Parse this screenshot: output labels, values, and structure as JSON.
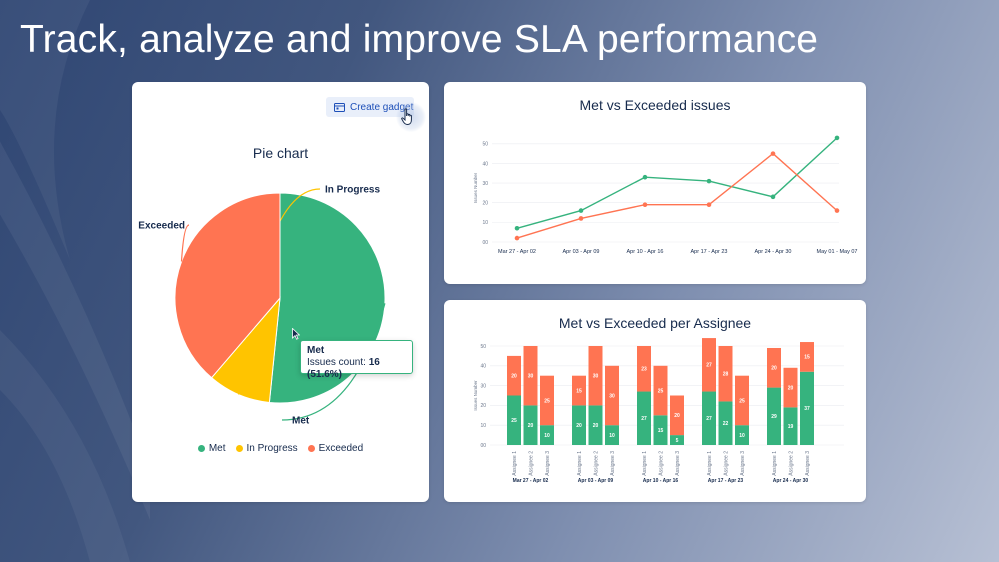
{
  "headline": "Track, analyze and improve SLA performance",
  "colors": {
    "met": "#36b37e",
    "in_progress": "#ffc400",
    "exceeded": "#ff7452",
    "accent": "#1d4fb8"
  },
  "pie_card": {
    "create_gadget_label": "Create gadget",
    "title": "Pie chart",
    "tooltip": {
      "title": "Met",
      "label": "Issues count:",
      "value": "16 (51.6%)"
    }
  },
  "icons": {
    "gadget": "chart-gadget-icon",
    "hand": "hand-pointer-icon",
    "arrow": "arrow-cursor-icon"
  },
  "chart_data": [
    {
      "type": "pie",
      "title": "Pie chart",
      "labels": [
        "Met",
        "In Progress",
        "Exceeded"
      ],
      "values": [
        16,
        3,
        12
      ],
      "legend": "bottom"
    },
    {
      "type": "line",
      "title": "Met vs Exceeded issues",
      "categories": [
        "Mar 27 - Apr 02",
        "Apr 03 - Apr 09",
        "Apr 10 - Apr 16",
        "Apr 17 - Apr 23",
        "Apr 24 - Apr 30",
        "May 01 - May 07"
      ],
      "ylabel": "Issues Number",
      "yticks": [
        "00",
        "10",
        "20",
        "30",
        "40",
        "50"
      ],
      "ylim": [
        0,
        55
      ],
      "grid": true,
      "series": [
        {
          "key": "met",
          "values": [
            7,
            16,
            33,
            31,
            23,
            53
          ]
        },
        {
          "key": "exceeded",
          "values": [
            2,
            12,
            19,
            19,
            45,
            16
          ]
        }
      ]
    },
    {
      "type": "bar",
      "stacked": true,
      "title": "Met vs Exceeded per Assignee",
      "ylabel": "Issues Number",
      "yticks": [
        "00",
        "10",
        "20",
        "30",
        "40",
        "50"
      ],
      "ylim": [
        0,
        50
      ],
      "grid": true,
      "groups": [
        {
          "label": "Mar 27 - Apr 02",
          "bars": [
            {
              "name": "Assignee 1",
              "met": 25,
              "exceeded": 20
            },
            {
              "name": "Assignee 2",
              "met": 20,
              "exceeded": 30
            },
            {
              "name": "Assignee 3",
              "met": 10,
              "exceeded": 25
            }
          ]
        },
        {
          "label": "Apr 03 - Apr 09",
          "bars": [
            {
              "name": "Assignee 1",
              "met": 20,
              "exceeded": 15
            },
            {
              "name": "Assignee 2",
              "met": 20,
              "exceeded": 30
            },
            {
              "name": "Assignee 3",
              "met": 10,
              "exceeded": 30
            }
          ]
        },
        {
          "label": "Apr 10 - Apr 16",
          "bars": [
            {
              "name": "Assignee 1",
              "met": 27,
              "exceeded": 23
            },
            {
              "name": "Assignee 2",
              "met": 15,
              "exceeded": 25
            },
            {
              "name": "Assignee 3",
              "met": 5,
              "exceeded": 20
            }
          ]
        },
        {
          "label": "Apr 17 - Apr 23",
          "bars": [
            {
              "name": "Assignee 1",
              "met": 27,
              "exceeded": 27
            },
            {
              "name": "Assignee 2",
              "met": 22,
              "exceeded": 28
            },
            {
              "name": "Assignee 3",
              "met": 10,
              "exceeded": 25
            }
          ]
        },
        {
          "label": "Apr 24 - Apr 30",
          "bars": [
            {
              "name": "Assignee 1",
              "met": 29,
              "exceeded": 20
            },
            {
              "name": "Assignee 2",
              "met": 19,
              "exceeded": 20
            },
            {
              "name": "Assignee 3",
              "met": 37,
              "exceeded": 15
            }
          ]
        }
      ]
    }
  ]
}
